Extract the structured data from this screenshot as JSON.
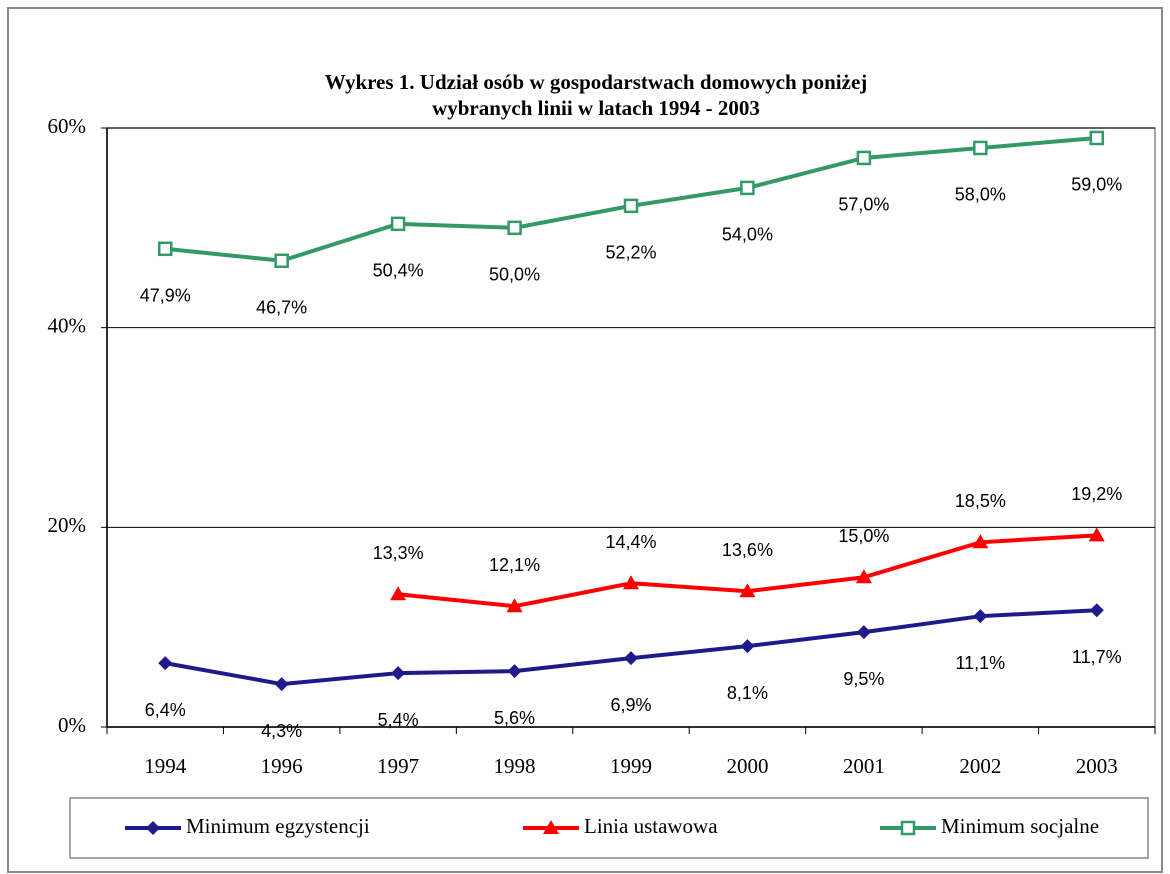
{
  "chart_data": {
    "type": "line",
    "title": [
      "Wykres 1. Udział osób w gospodarstwach domowych poniżej",
      "wybranych linii w latach 1994 - 2003"
    ],
    "categories": [
      "1994",
      "1996",
      "1997",
      "1998",
      "1999",
      "2000",
      "2001",
      "2002",
      "2003"
    ],
    "ylim": [
      0,
      60
    ],
    "yticks": [
      {
        "value": 0,
        "label": "0%"
      },
      {
        "value": 20,
        "label": "20%"
      },
      {
        "value": 40,
        "label": "40%"
      },
      {
        "value": 60,
        "label": "60%"
      }
    ],
    "grid": true,
    "legend": "bottom",
    "series": [
      {
        "name": "Minimum egzystencji",
        "color": "#1f1a8c",
        "marker": "diamond",
        "values": [
          6.4,
          4.3,
          5.4,
          5.6,
          6.9,
          8.1,
          9.5,
          11.1,
          11.7
        ],
        "value_labels": [
          "6,4%",
          "4,3%",
          "5,4%",
          "5,6%",
          "6,9%",
          "8,1%",
          "9,5%",
          "11,1%",
          "11,7%"
        ]
      },
      {
        "name": "Linia ustawowa",
        "color": "#ff0000",
        "marker": "triangle",
        "values": [
          null,
          null,
          13.3,
          12.1,
          14.4,
          13.6,
          15.0,
          18.5,
          19.2
        ],
        "value_labels": [
          null,
          null,
          "13,3%",
          "12,1%",
          "14,4%",
          "13,6%",
          "15,0%",
          "18,5%",
          "19,2%"
        ]
      },
      {
        "name": "Minimum socjalne",
        "color": "#339966",
        "marker": "square",
        "values": [
          47.9,
          46.7,
          50.4,
          50.0,
          52.2,
          54.0,
          57.0,
          58.0,
          59.0
        ],
        "value_labels": [
          "47,9%",
          "46,7%",
          "50,4%",
          "50,0%",
          "52,2%",
          "54,0%",
          "57,0%",
          "58,0%",
          "59,0%"
        ]
      }
    ]
  }
}
